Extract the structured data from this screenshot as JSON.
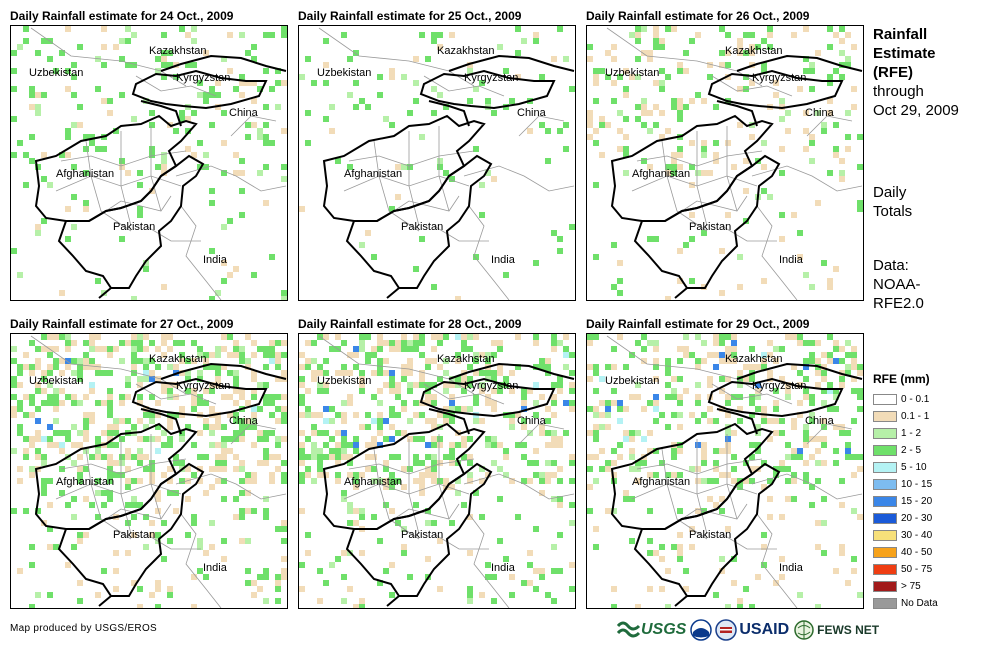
{
  "maps": [
    {
      "title": "Daily Rainfall estimate for 24 Oct., 2009",
      "day": 24
    },
    {
      "title": "Daily Rainfall estimate for 25 Oct., 2009",
      "day": 25
    },
    {
      "title": "Daily Rainfall estimate for 26 Oct., 2009",
      "day": 26
    },
    {
      "title": "Daily Rainfall estimate for 27 Oct., 2009",
      "day": 27
    },
    {
      "title": "Daily Rainfall estimate for 28 Oct., 2009",
      "day": 28
    },
    {
      "title": "Daily Rainfall estimate for 29 Oct., 2009",
      "day": 29
    }
  ],
  "country_labels": {
    "kazakhstan": "Kazakhstan",
    "uzbekistan": "Uzbekistan",
    "kyrgyzstan": "Kyrgyzstan",
    "china": "China",
    "afghanistan": "Afghanistan",
    "pakistan": "Pakistan",
    "india": "India"
  },
  "side": {
    "title_line1": "Rainfall",
    "title_line2": "Estimate",
    "title_line3": "(RFE)",
    "through": "through",
    "date": "Oct 29, 2009",
    "daily1": "Daily",
    "daily2": "Totals",
    "data1": "Data:",
    "data2": "NOAA-",
    "data3": "RFE2.0"
  },
  "legend": {
    "title": "RFE (mm)",
    "items": [
      {
        "label": "0 - 0.1",
        "color": "#ffffff"
      },
      {
        "label": "0.1 - 1",
        "color": "#f2dcb8"
      },
      {
        "label": "1 - 2",
        "color": "#b6f0a8"
      },
      {
        "label": "2 - 5",
        "color": "#6fe06a"
      },
      {
        "label": "5 - 10",
        "color": "#b4f2f4"
      },
      {
        "label": "10 - 15",
        "color": "#7dbcf0"
      },
      {
        "label": "15 - 20",
        "color": "#3a86e8"
      },
      {
        "label": "20 - 30",
        "color": "#1a5ad8"
      },
      {
        "label": "30 - 40",
        "color": "#f7e07a"
      },
      {
        "label": "40 - 50",
        "color": "#f7a21a"
      },
      {
        "label": "50 - 75",
        "color": "#ef3d12"
      },
      {
        "label": "> 75",
        "color": "#a11a1a"
      },
      {
        "label": "No Data",
        "color": "#999999"
      }
    ]
  },
  "credit": "Map produced by USGS/EROS",
  "logos": {
    "usgs": "USGS",
    "usaid": "USAID",
    "fews": "FEWS NET"
  }
}
